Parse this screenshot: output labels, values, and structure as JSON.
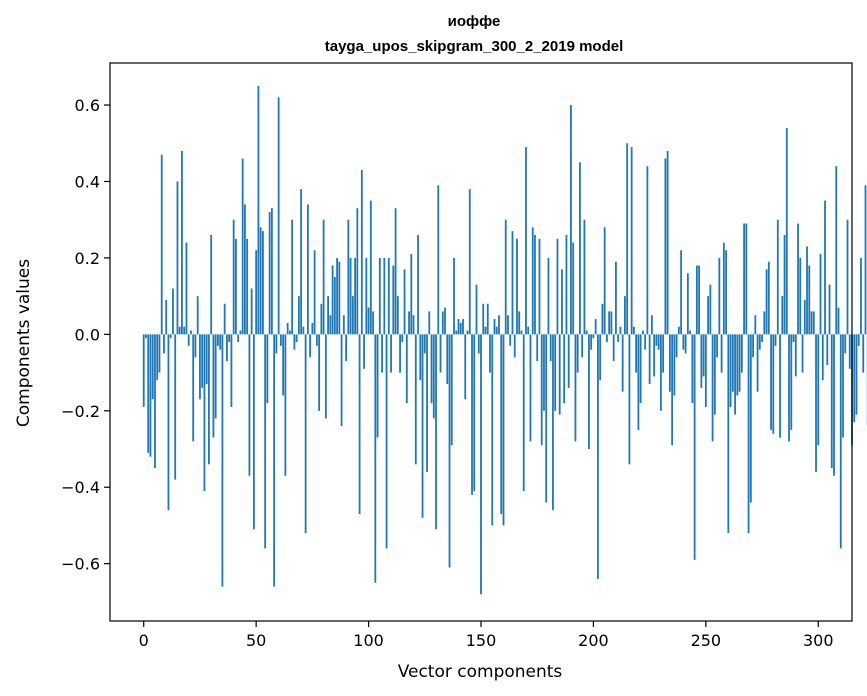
{
  "chart_data": {
    "type": "bar",
    "title_line1": "иоффе",
    "title_line2": "tayga_upos_skipgram_300_2_2019 model",
    "xlabel": "Vector components",
    "ylabel": "Components values",
    "xlim": [
      -15,
      315
    ],
    "ylim": [
      -0.75,
      0.71
    ],
    "xticks": [
      0,
      50,
      100,
      150,
      200,
      250,
      300
    ],
    "xtick_labels": [
      "0",
      "50",
      "100",
      "150",
      "200",
      "250",
      "300"
    ],
    "yticks": [
      -0.6,
      -0.4,
      -0.2,
      0.0,
      0.2,
      0.4,
      0.6
    ],
    "ytick_labels": [
      "−0.6",
      "−0.4",
      "−0.2",
      "0.0",
      "0.2",
      "0.4",
      "0.6"
    ],
    "bar_color": "#1f77b4",
    "values": [
      -0.19,
      -0.01,
      -0.31,
      -0.32,
      -0.17,
      -0.35,
      -0.12,
      -0.1,
      0.47,
      -0.05,
      0.09,
      -0.46,
      -0.01,
      0.12,
      -0.38,
      0.4,
      0.02,
      0.48,
      0.02,
      0.24,
      -0.03,
      0.01,
      -0.28,
      -0.06,
      0.1,
      -0.17,
      -0.14,
      -0.41,
      -0.13,
      -0.34,
      0.26,
      -0.27,
      -0.22,
      -0.03,
      -0.04,
      -0.66,
      0.08,
      -0.07,
      -0.02,
      -0.19,
      0.3,
      0.25,
      -0.02,
      0.01,
      0.46,
      0.34,
      0.25,
      -0.37,
      0.12,
      -0.51,
      0.22,
      0.65,
      0.28,
      0.27,
      -0.56,
      -0.18,
      0.32,
      0.33,
      -0.66,
      -0.05,
      0.62,
      -0.03,
      -0.16,
      -0.37,
      0.03,
      0.01,
      0.3,
      -0.04,
      -0.02,
      0.1,
      0.38,
      0.02,
      -0.52,
      0.34,
      -0.06,
      0.03,
      0.22,
      -0.03,
      -0.2,
      0.08,
      0.3,
      -0.22,
      0.1,
      0.05,
      0.18,
      0.15,
      0.2,
      0.19,
      -0.24,
      0.05,
      -0.07,
      0.3,
      0.2,
      0.1,
      0.2,
      0.33,
      -0.47,
      0.43,
      -0.09,
      0.2,
      0.07,
      0.35,
      0.06,
      -0.65,
      -0.27,
      0.2,
      -0.1,
      0.2,
      -0.56,
      0.2,
      -0.1,
      0.18,
      0.33,
      0.1,
      -0.1,
      -0.02,
      0.17,
      -0.18,
      0.06,
      0.21,
      0.05,
      -0.34,
      0.26,
      -0.12,
      -0.48,
      -0.05,
      -0.36,
      0.06,
      -0.18,
      -0.22,
      -0.51,
      0.39,
      -0.1,
      0.06,
      0.07,
      -0.13,
      -0.61,
      -0.29,
      0.2,
      0.01,
      0.04,
      0.03,
      0.04,
      -0.17,
      0.01,
      0.38,
      -0.42,
      -0.41,
      0.13,
      -0.05,
      -0.68,
      0.08,
      0.02,
      0.08,
      -0.1,
      -0.5,
      0.04,
      0.02,
      0.05,
      -0.47,
      -0.5,
      0.3,
      0.05,
      -0.03,
      0.27,
      -0.06,
      0.25,
      0.06,
      0.01,
      -0.41,
      0.49,
      0.02,
      -0.28,
      0.28,
      0.26,
      -0.07,
      0.25,
      -0.29,
      -0.2,
      -0.44,
      0.2,
      -0.07,
      -0.46,
      -0.2,
      0.25,
      -0.21,
      0.17,
      -0.18,
      0.26,
      -0.14,
      0.6,
      0.24,
      -0.28,
      -0.1,
      0.45,
      -0.06,
      0.3,
      0.01,
      -0.3,
      -0.04,
      -0.01,
      0.04,
      -0.64,
      -0.12,
      0.08,
      0.28,
      -0.02,
      0.06,
      0.06,
      -0.07,
      0.19,
      -0.02,
      0.02,
      -0.15,
      0.1,
      0.5,
      -0.34,
      0.49,
      0.02,
      -0.1,
      -0.25,
      -0.18,
      0.01,
      -0.04,
      0.44,
      -0.13,
      0.05,
      -0.11,
      -0.03,
      -0.04,
      -0.2,
      -0.1,
      0.46,
      0.48,
      -0.15,
      -0.29,
      -0.16,
      -0.06,
      0.02,
      0.22,
      -0.04,
      -0.05,
      0.16,
      0.01,
      -0.18,
      -0.59,
      0.18,
      0.18,
      -0.14,
      -0.11,
      -0.19,
      0.1,
      0.13,
      -0.28,
      -0.21,
      -0.06,
      0.2,
      -0.1,
      0.24,
      0.22,
      -0.52,
      -0.19,
      -0.15,
      -0.21,
      -0.16,
      -0.15,
      -0.1,
      0.29,
      0.29,
      -0.52,
      -0.44,
      -0.06,
      0.05,
      -0.15,
      -0.04,
      -0.02,
      0.06,
      0.17,
      0.19,
      -0.25,
      -0.26,
      -0.03,
      0.3,
      -0.27,
      0.1,
      0.26,
      0.54,
      -0.28,
      -0.25,
      -0.02,
      -0.11,
      0.29,
      0.2,
      -0.1,
      0.09,
      0.23,
      0.18,
      0.06,
      0.06,
      -0.36,
      -0.29,
      0.21,
      -0.12,
      0.35,
      -0.08,
      0.13,
      -0.35,
      -0.37,
      0.44,
      0.07,
      -0.56,
      -0.27,
      -0.05,
      0.3,
      -0.09,
      -0.29,
      -0.23,
      -0.21,
      -0.03,
      0.2,
      -0.1,
      0.39,
      -0.24
    ]
  }
}
